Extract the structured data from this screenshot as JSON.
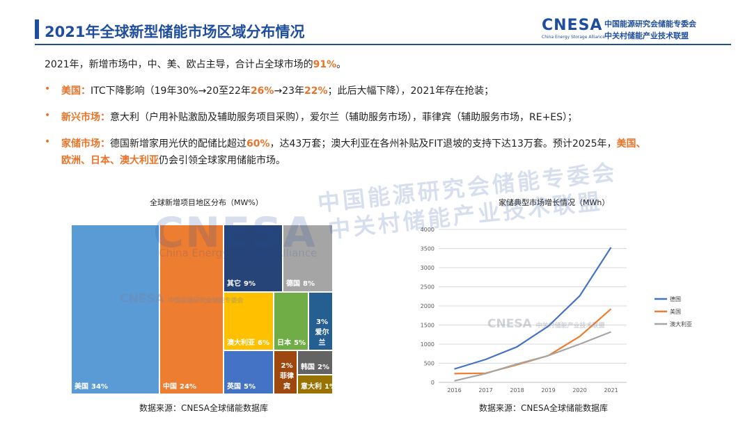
{
  "header": {
    "title": "2021年全球新型储能市场区域分布情况",
    "logo_mark": "CNESA",
    "logo_tagline": "China Energy Storage Alliance",
    "logo_cn_line1": "中国能源研究会储能专委会",
    "logo_cn_line2": "中关村储能产业技术联盟"
  },
  "summary": {
    "prefix": "2021年，新增市场中，中、美、欧占主导，合计占全球市场的",
    "highlight": "91%",
    "suffix": "。"
  },
  "bullets": [
    {
      "label": "美国：",
      "parts": [
        "ITC下降影响（19年30%→20至22年",
        "26%",
        "→23年",
        "22%",
        "；此后大幅下降），2021年存在抢装；"
      ]
    },
    {
      "label": "新兴市场：",
      "text": "意大利（户用补贴激励及辅助服务项目采购），爱尔兰（辅助服务市场），菲律宾（辅助服务市场，RE+ES）；"
    },
    {
      "label": "家储市场：",
      "parts": [
        "德国新增家用光伏的配储比超过",
        "60%",
        "，达43万套；澳大利亚在各州补贴及FIT退坡的支持下达13万套。预计2025年，",
        "美国、"
      ],
      "line2_highlight": "欧洲、日本、澳大利亚",
      "line2_suffix": "仍会引领全球家用储能市场。"
    }
  ],
  "watermark": {
    "big": "CNESA",
    "tag": "China Energy Storage Alliance",
    "cn1": "中国能源研究会储能专委会",
    "cn2": "中关村储能产业技术联盟",
    "small_mark": "CNESA",
    "small_cn1": "中国能源研究会储能专委会",
    "small_cn2": "中关村储能产业技术联盟"
  },
  "chart_data": [
    {
      "type": "treemap",
      "title": "全球新增项目地区分布（MW%）",
      "source": "数据来源：CNESA全球储能数据库",
      "items": [
        {
          "name": "美国",
          "value": "34%",
          "color": "#5b9bd5"
        },
        {
          "name": "中国",
          "value": "24%",
          "color": "#ed7d31"
        },
        {
          "name": "其它",
          "value": "9%",
          "color": "#264478"
        },
        {
          "name": "德国",
          "value": "8%",
          "color": "#a5a5a5"
        },
        {
          "name": "澳大利亚",
          "value": "6%",
          "color": "#ffc000"
        },
        {
          "name": "日本",
          "value": "5%",
          "color": "#70ad47"
        },
        {
          "name": "爱尔兰",
          "value": "3%",
          "color": "#255e91"
        },
        {
          "name": "英国",
          "value": "5%",
          "color": "#4472c4"
        },
        {
          "name": "菲律宾",
          "value": "2%",
          "color": "#9e480e"
        },
        {
          "name": "韩国",
          "value": "2%",
          "color": "#636363"
        },
        {
          "name": "意大利",
          "value": "1%",
          "color": "#997300"
        }
      ]
    },
    {
      "type": "line",
      "title": "家储典型市场增长情况（MWh）",
      "source": "数据来源：CNESA全球储能数据库",
      "x": [
        "2016",
        "2017",
        "2018",
        "2019",
        "2020",
        "2021"
      ],
      "ylim": [
        0,
        4000
      ],
      "yticks": [
        "0",
        "500",
        "1000",
        "1500",
        "2000",
        "2500",
        "3000",
        "3500",
        "4000"
      ],
      "series": [
        {
          "name": "德国",
          "color": "#4472c4",
          "values": [
            350,
            600,
            930,
            1470,
            2260,
            3530
          ]
        },
        {
          "name": "美国",
          "color": "#ed7d31",
          "values": [
            230,
            240,
            460,
            700,
            1200,
            1920
          ]
        },
        {
          "name": "澳大利亚",
          "color": "#a5a5a5",
          "values": [
            40,
            230,
            480,
            700,
            1000,
            1320
          ]
        }
      ]
    }
  ]
}
